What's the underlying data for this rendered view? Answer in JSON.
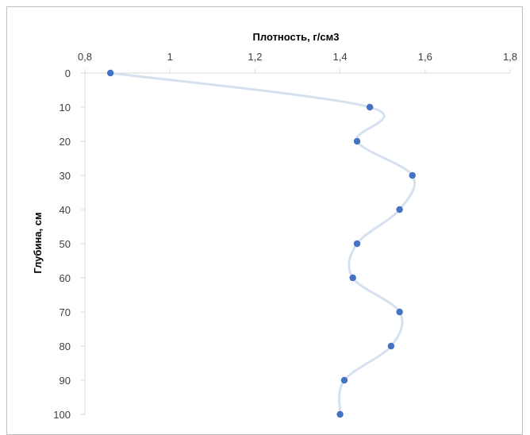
{
  "chart_data": {
    "type": "line",
    "title": "",
    "xlabel": "Плотность, г/см3",
    "ylabel": "Глубина, см",
    "x_axis_position": "top",
    "y_axis_inverted": true,
    "xlim": [
      0.8,
      1.8
    ],
    "ylim": [
      0,
      100
    ],
    "x_ticks": [
      "0,8",
      "1",
      "1,2",
      "1,4",
      "1,6",
      "1,8"
    ],
    "y_ticks": [
      "0",
      "10",
      "20",
      "30",
      "40",
      "50",
      "60",
      "70",
      "80",
      "90",
      "100"
    ],
    "grid": false,
    "smoothed": true,
    "series": [
      {
        "name": "",
        "x": [
          0.86,
          1.47,
          1.44,
          1.57,
          1.54,
          1.44,
          1.43,
          1.54,
          1.52,
          1.41,
          1.4
        ],
        "y": [
          0,
          10,
          20,
          30,
          40,
          50,
          60,
          70,
          80,
          90,
          100
        ]
      }
    ],
    "colors": {
      "marker": "#4472c4",
      "line": "#d6e1f0",
      "axis": "#d9d9d9"
    }
  }
}
